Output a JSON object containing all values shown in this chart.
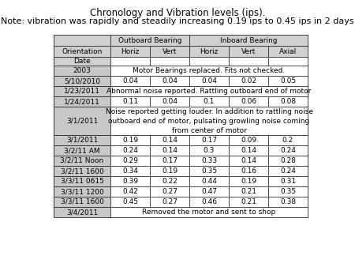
{
  "title_line1": "Chronology and Vibration levels (ips).",
  "title_line2": "Note: vibration was rapidly and steadily increasing 0.19 ips to 0.45 ips in 2 days",
  "rows": [
    {
      "type": "span",
      "label": "2003",
      "text": "Motor Bearings replaced. Fits not checked."
    },
    {
      "type": "data",
      "label": "5/10/2010",
      "values": [
        "0.04",
        "0.04",
        "0.04",
        "0.02",
        "0.05"
      ]
    },
    {
      "type": "span",
      "label": "1/23/2011",
      "text": "Abnormal noise reported. Rattling outboard end of motor"
    },
    {
      "type": "data",
      "label": "1/24/2011",
      "values": [
        "0.11",
        "0.04",
        "0.1",
        "0.06",
        "0.08"
      ]
    },
    {
      "type": "span3",
      "label": "3/1/2011",
      "text": "Noise reported getting louder. In addition to rattling noise\noutboard end of motor, pulsating growling noise coming\nfrom center of motor"
    },
    {
      "type": "data",
      "label": "3/1/2011",
      "values": [
        "0.19",
        "0.14",
        "0.17",
        "0.09",
        "0.2"
      ]
    },
    {
      "type": "data",
      "label": "3/2/11 AM",
      "values": [
        "0.24",
        "0.14",
        "0.3",
        "0.14",
        "0.24"
      ]
    },
    {
      "type": "data",
      "label": "3/2/11 Noon",
      "values": [
        "0.29",
        "0.17",
        "0.33",
        "0.14",
        "0.28"
      ]
    },
    {
      "type": "data",
      "label": "3/2/11 1600",
      "values": [
        "0.34",
        "0.19",
        "0.35",
        "0.16",
        "0.24"
      ]
    },
    {
      "type": "data",
      "label": "3/3/11 0615",
      "values": [
        "0.39",
        "0.22",
        "0.44",
        "0.19",
        "0.31"
      ]
    },
    {
      "type": "data",
      "label": "3/3/11 1200",
      "values": [
        "0.42",
        "0.27",
        "0.47",
        "0.21",
        "0.35"
      ]
    },
    {
      "type": "data",
      "label": "3/3/11 1600",
      "values": [
        "0.45",
        "0.27",
        "0.46",
        "0.21",
        "0.38"
      ]
    },
    {
      "type": "span",
      "label": "3/4/2011",
      "text": "Removed the motor and sent to shop"
    }
  ],
  "bg_header": "#d0d0d0",
  "bg_label": "#c8c8c8",
  "bg_white": "#ffffff",
  "border_color": "#000000",
  "title_fontsize": 8.5,
  "table_fontsize": 6.5
}
